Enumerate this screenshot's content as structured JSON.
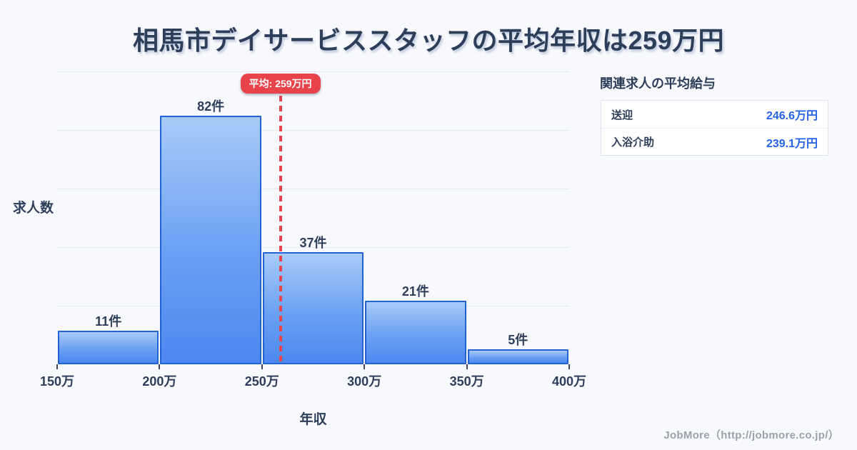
{
  "page": {
    "title": "相馬市デイサービススタッフの平均年収は259万円",
    "background": "#f8f9fc"
  },
  "chart_data": {
    "type": "bar",
    "title": "相馬市デイサービススタッフの平均年収は259万円",
    "xlabel": "年収",
    "ylabel": "求人数",
    "categories": [
      "150万-200万",
      "200万-250万",
      "250万-300万",
      "300万-350万",
      "350万-400万"
    ],
    "values": [
      11,
      82,
      37,
      21,
      5
    ],
    "bar_labels": [
      "11件",
      "82件",
      "37件",
      "21件",
      "5件"
    ],
    "x_ticks": [
      "150万",
      "200万",
      "250万",
      "300万",
      "350万",
      "400万"
    ],
    "x_range": [
      150,
      400
    ],
    "ylim": [
      0,
      96
    ],
    "grid": "horizontal",
    "gridline_count": 5,
    "legend": "none",
    "average_line": {
      "value": 259,
      "label": "平均: 259万円"
    }
  },
  "side_panel": {
    "heading": "関連求人の平均給与",
    "rows": [
      {
        "label": "送迎",
        "value": "246.6万円"
      },
      {
        "label": "入浴介助",
        "value": "239.1万円"
      }
    ]
  },
  "footer": {
    "credit": "JobMore（http://jobmore.co.jp/）"
  },
  "colors": {
    "background": "#f8f9fc",
    "title_text": "#2d3e5a",
    "bar_fill_top": "#a8cbf8",
    "bar_fill_bottom": "#4c88f0",
    "bar_border": "#2163d4",
    "average_red": "#e8434b",
    "value_blue": "#2563eb",
    "gridline": "#e4e8f1",
    "footer_gray": "#9aa1ab"
  }
}
